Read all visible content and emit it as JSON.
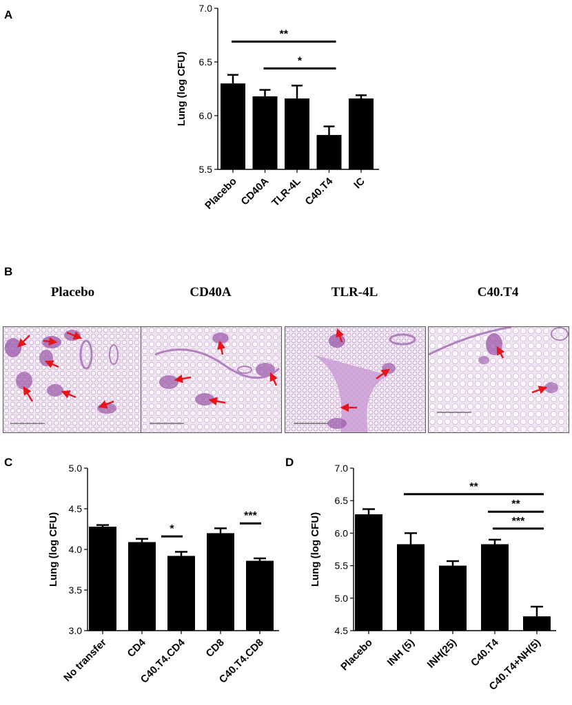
{
  "panels": {
    "A": {
      "letter": "A"
    },
    "B": {
      "letter": "B"
    },
    "C": {
      "letter": "C"
    },
    "D": {
      "letter": "D"
    }
  },
  "colors": {
    "bar": "#000000",
    "arrow": "#e8141c",
    "tissue_dark": "#9a55a8",
    "tissue_light": "#e7d6ea",
    "background_slide": "#f3ecf5"
  },
  "histology": {
    "titles": [
      "Placebo",
      "CD40A",
      "TLR-4L",
      "C40.T4"
    ]
  },
  "chart_data": [
    {
      "id": "A",
      "type": "bar",
      "categories": [
        "Placebo",
        "CD40A",
        "TLR-4L",
        "C40.T4",
        "IC"
      ],
      "values": [
        6.3,
        6.18,
        6.16,
        5.82,
        6.16
      ],
      "errors": [
        0.08,
        0.06,
        0.12,
        0.08,
        0.03
      ],
      "ylabel": "Lung (log CFU)",
      "ylim": [
        5.5,
        7.0
      ],
      "yticks": [
        "5.5",
        "6.0",
        "6.5",
        "7.0"
      ],
      "significance": [
        {
          "from": 0,
          "to": 3,
          "label": "**",
          "y": 6.69
        },
        {
          "from": 1,
          "to": 3,
          "label": "*",
          "y": 6.44
        }
      ]
    },
    {
      "id": "C",
      "type": "bar",
      "categories": [
        "No transfer",
        "CD4",
        "C40.T4.CD4",
        "CD8",
        "C40.T4.CD8"
      ],
      "values": [
        4.28,
        4.09,
        3.92,
        4.2,
        3.86
      ],
      "errors": [
        0.02,
        0.04,
        0.05,
        0.06,
        0.03
      ],
      "ylabel": "Lung (log CFU)",
      "ylim": [
        3.0,
        5.0
      ],
      "yticks": [
        "3.0",
        "3.5",
        "4.0",
        "4.5",
        "5.0"
      ],
      "significance": [
        {
          "from": 1,
          "to": 2,
          "label": "*",
          "y": 4.16
        },
        {
          "from": 3,
          "to": 4,
          "label": "***",
          "y": 4.32
        }
      ]
    },
    {
      "id": "D",
      "type": "bar",
      "categories": [
        "Placebo",
        "INH (5)",
        "INH(25)",
        "C40.T4",
        "C40.T4+NH(5)"
      ],
      "values": [
        6.29,
        5.83,
        5.5,
        5.83,
        4.72
      ],
      "errors": [
        0.08,
        0.17,
        0.07,
        0.07,
        0.15
      ],
      "ylabel": "Lung (log CFU)",
      "ylim": [
        4.5,
        7.0
      ],
      "yticks": [
        "4.5",
        "5.0",
        "5.5",
        "6.0",
        "6.5",
        "7.0"
      ],
      "significance": [
        {
          "from": 1,
          "to": 4,
          "label": "**",
          "y": 6.6
        },
        {
          "from": 3,
          "to": 4,
          "label": "**",
          "y": 6.33
        },
        {
          "from": 3.9,
          "to": 4,
          "label": "***",
          "y": 6.07
        }
      ]
    }
  ]
}
